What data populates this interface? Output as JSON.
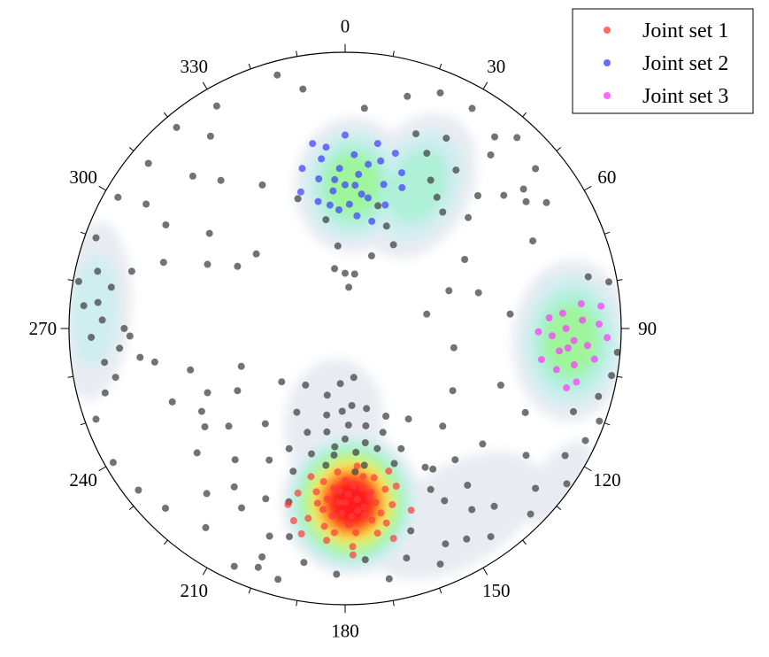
{
  "chart_data": {
    "type": "scatter",
    "subtype": "stereonet",
    "title": "",
    "angular_axis": {
      "labels": [
        "0",
        "30",
        "60",
        "90",
        "120",
        "150",
        "180",
        "210",
        "240",
        "270",
        "300",
        "330"
      ],
      "label_values": [
        0,
        30,
        60,
        90,
        120,
        150,
        180,
        210,
        240,
        270,
        300,
        330
      ],
      "minor_tick_step": 10,
      "direction": "clockwise",
      "zero_at": "top"
    },
    "radial_unit": "normalized distance from centre, 0 = centre, 1 = primitive circle",
    "legend": {
      "placement": "top-right",
      "entries": [
        {
          "label": "Joint set 1",
          "color": "#ff3b3b"
        },
        {
          "label": "Joint set 2",
          "color": "#3b3bff"
        },
        {
          "label": "Joint set 3",
          "color": "#ff33ff"
        }
      ]
    },
    "density_levels": [
      {
        "level": 1,
        "color": "#e8ecf2"
      },
      {
        "level": 2,
        "color": "#cfeef0"
      },
      {
        "level": 3,
        "color": "#aef0d8"
      },
      {
        "level": 4,
        "color": "#9ef59a"
      },
      {
        "level": 5,
        "color": "#d8f57a"
      },
      {
        "level": 6,
        "color": "#ffdc40"
      },
      {
        "level": 7,
        "color": "#ff7a2a"
      },
      {
        "level": 8,
        "color": "#ff1a1a"
      }
    ],
    "density_clusters": [
      {
        "azimuth": 178,
        "r": 0.63,
        "spread_az": 11,
        "spread_r": 0.15,
        "max_level": 8
      },
      {
        "azimuth": 3,
        "r": 0.52,
        "spread_az": 11,
        "spread_r": 0.14,
        "max_level": 4
      },
      {
        "azimuth": 27,
        "r": 0.58,
        "spread_az": 9,
        "spread_r": 0.16,
        "max_level": 3
      },
      {
        "azimuth": 93,
        "r": 0.82,
        "spread_az": 10,
        "spread_r": 0.12,
        "max_level": 4
      },
      {
        "azimuth": 274,
        "r": 0.91,
        "spread_az": 10,
        "spread_r": 0.07,
        "max_level": 2
      },
      {
        "azimuth": 149,
        "r": 0.79,
        "spread_az": 12,
        "spread_r": 0.1,
        "max_level": 1
      },
      {
        "azimuth": 126,
        "r": 0.95,
        "spread_az": 5,
        "spread_r": 0.04,
        "max_level": 1
      },
      {
        "azimuth": 187,
        "r": 0.34,
        "spread_az": 14,
        "spread_r": 0.13,
        "max_level": 1
      }
    ],
    "series": [
      {
        "name": "Joint set 1",
        "color": "#ff3b3b",
        "points": [
          [
            176,
            0.62
          ],
          [
            179,
            0.6
          ],
          [
            182,
            0.63
          ],
          [
            174,
            0.65
          ],
          [
            178,
            0.68
          ],
          [
            184,
            0.58
          ],
          [
            171,
            0.6
          ],
          [
            187,
            0.66
          ],
          [
            180,
            0.55
          ],
          [
            172,
            0.7
          ],
          [
            190,
            0.6
          ],
          [
            169,
            0.55
          ],
          [
            177,
            0.74
          ],
          [
            186,
            0.72
          ],
          [
            165,
            0.66
          ],
          [
            193,
            0.55
          ],
          [
            175,
            0.5
          ],
          [
            183,
            0.52
          ],
          [
            168,
            0.72
          ],
          [
            191,
            0.7
          ],
          [
            178,
            0.79
          ],
          [
            162,
            0.6
          ],
          [
            196,
            0.62
          ],
          [
            174,
            0.58
          ],
          [
            181,
            0.67
          ],
          [
            189,
            0.64
          ],
          [
            170,
            0.64
          ],
          [
            185,
            0.77
          ],
          [
            167,
            0.78
          ],
          [
            179,
            0.71
          ],
          [
            173,
            0.54
          ],
          [
            195,
            0.72
          ],
          [
            160,
            0.7
          ],
          [
            176,
            0.66
          ],
          [
            182,
            0.59
          ],
          [
            188,
            0.56
          ],
          [
            171,
            0.75
          ],
          [
            184,
            0.68
          ],
          [
            163,
            0.54
          ],
          [
            198,
            0.67
          ],
          [
            177,
            0.57
          ],
          [
            174,
            0.68
          ],
          [
            180,
            0.63
          ],
          [
            186,
            0.62
          ],
          [
            169,
            0.68
          ],
          [
            192,
            0.76
          ],
          [
            166,
            0.6
          ],
          [
            178,
            0.82
          ],
          [
            183,
            0.74
          ],
          [
            172,
            0.62
          ]
        ]
      },
      {
        "name": "Joint set 2",
        "color": "#3b3bff",
        "points": [
          [
            0,
            0.52
          ],
          [
            5,
            0.56
          ],
          [
            -5,
            0.5
          ],
          [
            10,
            0.48
          ],
          [
            -10,
            0.55
          ],
          [
            3,
            0.63
          ],
          [
            -3,
            0.43
          ],
          [
            15,
            0.54
          ],
          [
            -15,
            0.6
          ],
          [
            8,
            0.6
          ],
          [
            -8,
            0.62
          ],
          [
            2,
            0.45
          ],
          [
            12,
            0.62
          ],
          [
            -12,
            0.47
          ],
          [
            18,
            0.47
          ],
          [
            -2,
            0.58
          ],
          [
            6,
            0.41
          ],
          [
            -6,
            0.66
          ],
          [
            14,
            0.4
          ],
          [
            -18,
            0.52
          ],
          [
            20,
            0.6
          ],
          [
            0,
            0.7
          ],
          [
            10,
            0.68
          ],
          [
            -10,
            0.68
          ],
          [
            4,
            0.52
          ],
          [
            -4,
            0.54
          ],
          [
            16,
            0.66
          ],
          [
            7,
            0.49
          ],
          [
            -7,
            0.45
          ],
          [
            22,
            0.55
          ]
        ]
      },
      {
        "name": "Joint set 3",
        "color": "#ff33ff",
        "points": [
          [
            90,
            0.8
          ],
          [
            93,
            0.83
          ],
          [
            96,
            0.78
          ],
          [
            88,
            0.86
          ],
          [
            99,
            0.84
          ],
          [
            92,
            0.75
          ],
          [
            86,
            0.79
          ],
          [
            101,
            0.78
          ],
          [
            94,
            0.88
          ],
          [
            89,
            0.92
          ],
          [
            97,
            0.91
          ],
          [
            84,
            0.86
          ],
          [
            103,
            0.86
          ],
          [
            91,
            0.7
          ],
          [
            95,
            0.81
          ],
          [
            87,
            0.74
          ],
          [
            99,
            0.72
          ],
          [
            92,
            0.95
          ],
          [
            85,
            0.93
          ],
          [
            105,
            0.83
          ]
        ]
      },
      {
        "name": "",
        "color": "#444444",
        "points": [
          [
            180,
            0.4
          ],
          [
            175,
            0.45
          ],
          [
            185,
            0.43
          ],
          [
            170,
            0.42
          ],
          [
            190,
            0.38
          ],
          [
            178,
            0.35
          ],
          [
            165,
            0.45
          ],
          [
            195,
            0.47
          ],
          [
            172,
            0.5
          ],
          [
            188,
            0.5
          ],
          [
            160,
            0.52
          ],
          [
            200,
            0.55
          ],
          [
            182,
            0.3
          ],
          [
            168,
            0.36
          ],
          [
            175,
            0.28
          ],
          [
            192,
            0.32
          ],
          [
            205,
            0.48
          ],
          [
            155,
            0.48
          ],
          [
            185,
            0.46
          ],
          [
            176,
            0.52
          ],
          [
            200,
            0.4
          ],
          [
            210,
            0.55
          ],
          [
            150,
            0.58
          ],
          [
            160,
            0.4
          ],
          [
            175,
            0.84
          ],
          [
            190,
            0.86
          ],
          [
            200,
            0.8
          ],
          [
            210,
            0.75
          ],
          [
            220,
            0.78
          ],
          [
            150,
            0.72
          ],
          [
            145,
            0.8
          ],
          [
            140,
            0.84
          ],
          [
            140,
            0.62
          ],
          [
            130,
            0.65
          ],
          [
            135,
            0.5
          ],
          [
            120,
            0.45
          ],
          [
            210,
            0.35
          ],
          [
            215,
            0.25
          ],
          [
            220,
            0.45
          ],
          [
            230,
            0.3
          ],
          [
            240,
            0.45
          ],
          [
            250,
            0.4
          ],
          [
            235,
            0.62
          ],
          [
            230,
            0.7
          ],
          [
            247,
            0.68
          ],
          [
            255,
            0.58
          ],
          [
            260,
            0.7
          ],
          [
            262,
            0.75
          ],
          [
            265,
            0.82
          ],
          [
            270,
            0.8
          ],
          [
            272,
            0.88
          ],
          [
            268,
            0.92
          ],
          [
            276,
            0.9
          ],
          [
            280,
            0.86
          ],
          [
            285,
            0.8
          ],
          [
            290,
            0.7
          ],
          [
            295,
            0.55
          ],
          [
            300,
            0.45
          ],
          [
            310,
            0.42
          ],
          [
            305,
            0.6
          ],
          [
            300,
            0.75
          ],
          [
            302,
            0.85
          ],
          [
            320,
            0.7
          ],
          [
            325,
            0.85
          ],
          [
            315,
            0.78
          ],
          [
            330,
            0.6
          ],
          [
            340,
            0.5
          ],
          [
            350,
            0.4
          ],
          [
            355,
            0.3
          ],
          [
            10,
            0.2
          ],
          [
            20,
            0.28
          ],
          [
            30,
            0.35
          ],
          [
            40,
            0.55
          ],
          [
            45,
            0.68
          ],
          [
            50,
            0.75
          ],
          [
            40,
            0.82
          ],
          [
            35,
            0.7
          ],
          [
            30,
            0.62
          ],
          [
            25,
            0.7
          ],
          [
            20,
            0.75
          ],
          [
            28,
            0.78
          ],
          [
            35,
            0.58
          ],
          [
            22,
            0.4
          ],
          [
            15,
            0.46
          ],
          [
            48,
            0.6
          ],
          [
            55,
            0.8
          ],
          [
            60,
            0.5
          ],
          [
            70,
            0.4
          ],
          [
            80,
            0.3
          ],
          [
            75,
            0.5
          ],
          [
            85,
            0.6
          ],
          [
            100,
            0.4
          ],
          [
            110,
            0.6
          ],
          [
            115,
            0.72
          ],
          [
            125,
            0.8
          ],
          [
            130,
            0.9
          ],
          [
            120,
            0.92
          ],
          [
            110,
            0.88
          ],
          [
            105,
            0.95
          ],
          [
            100,
            0.98
          ],
          [
            95,
            0.99
          ],
          [
            80,
            0.97
          ],
          [
            78,
            0.9
          ],
          [
            110,
            0.98
          ],
          [
            115,
            0.96
          ],
          [
            125,
            0.98
          ],
          [
            135,
            0.95
          ],
          [
            145,
            0.92
          ],
          [
            150,
            0.88
          ],
          [
            155,
            0.86
          ],
          [
            158,
            0.92
          ],
          [
            200,
            0.92
          ],
          [
            205,
            0.95
          ],
          [
            215,
            0.88
          ],
          [
            225,
            0.92
          ],
          [
            232,
            0.95
          ],
          [
            240,
            0.97
          ],
          [
            250,
            0.96
          ],
          [
            255,
            0.9
          ],
          [
            258,
            0.85
          ],
          [
            262,
            0.88
          ],
          [
            268,
            0.78
          ],
          [
            275,
            0.95
          ],
          [
            280,
            0.98
          ],
          [
            283,
            0.92
          ],
          [
            290,
            0.96
          ],
          [
            300,
            0.95
          ],
          [
            310,
            0.93
          ],
          [
            320,
            0.95
          ],
          [
            330,
            0.93
          ],
          [
            345,
            0.95
          ],
          [
            350,
            0.88
          ],
          [
            5,
            0.8
          ],
          [
            15,
            0.87
          ],
          [
            22,
            0.92
          ],
          [
            30,
            0.92
          ],
          [
            38,
            0.88
          ],
          [
            42,
            0.93
          ],
          [
            50,
            0.9
          ],
          [
            52,
            0.82
          ],
          [
            58,
            0.86
          ],
          [
            65,
            0.75
          ],
          [
            0,
            0.2
          ],
          [
            5,
            0.15
          ],
          [
            350,
            0.22
          ],
          [
            165,
            0.3
          ],
          [
            155,
            0.35
          ],
          [
            195,
            0.25
          ],
          [
            185,
            0.2
          ],
          [
            170,
            0.18
          ],
          [
            145,
            0.4
          ],
          [
            230,
            0.55
          ],
          [
            240,
            0.6
          ],
          [
            245,
            0.55
          ],
          [
            220,
            0.62
          ],
          [
            215,
            0.7
          ],
          [
            205,
            0.68
          ],
          [
            195,
            0.78
          ],
          [
            198,
            0.66
          ],
          [
            162,
            0.77
          ],
          [
            152,
            0.66
          ],
          [
            148,
            0.6
          ],
          [
            142,
            0.72
          ],
          [
            165,
            0.86
          ],
          [
            182,
            0.89
          ],
          [
            170,
            0.92
          ],
          [
            195,
            0.94
          ],
          [
            200,
            0.88
          ]
        ]
      }
    ]
  }
}
